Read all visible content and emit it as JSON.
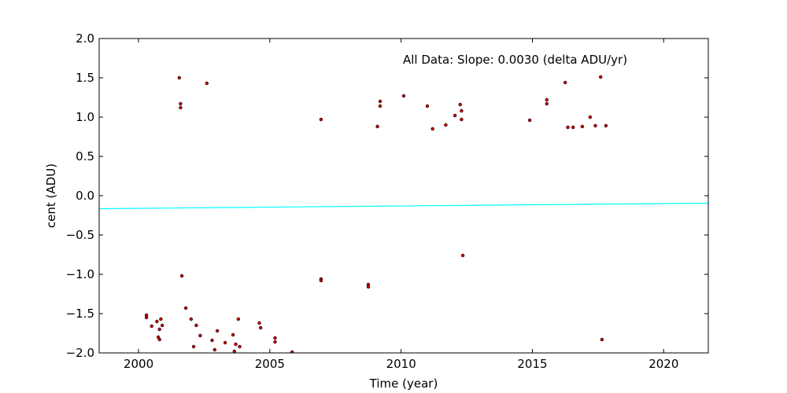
{
  "chart_data": {
    "type": "scatter",
    "title": "",
    "xlabel": "Time (year)",
    "ylabel": "cent (ADU)",
    "xlim": [
      1998.5,
      2021.7
    ],
    "ylim": [
      -2.0,
      2.0
    ],
    "x_ticks": [
      2000,
      2005,
      2010,
      2015,
      2020
    ],
    "x_tick_labels": [
      "2000",
      "2005",
      "2010",
      "2015",
      "2020"
    ],
    "y_ticks": [
      -2.0,
      -1.5,
      -1.0,
      -0.5,
      0.0,
      0.5,
      1.0,
      1.5,
      2.0
    ],
    "y_tick_labels": [
      "−2.0",
      "−1.5",
      "−1.0",
      "−0.5",
      "0.0",
      "0.5",
      "1.0",
      "1.5",
      "2.0"
    ],
    "grid": false,
    "annotation": "All Data: Slope:  0.0030 (delta ADU/yr)",
    "fit_line": {
      "color": "#00ffff",
      "points": [
        [
          1998.5,
          -0.165
        ],
        [
          2021.7,
          -0.095
        ]
      ]
    },
    "series": [
      {
        "marker_color": "#cc0000",
        "edge_color": "#000000",
        "points": [
          [
            2000.3,
            -1.55
          ],
          [
            2000.3,
            -1.52
          ],
          [
            2000.5,
            -1.66
          ],
          [
            2000.7,
            -1.6
          ],
          [
            2000.75,
            -1.8
          ],
          [
            2000.8,
            -1.83
          ],
          [
            2000.8,
            -1.7
          ],
          [
            2000.85,
            -1.57
          ],
          [
            2000.9,
            -1.65
          ],
          [
            2001.55,
            1.5
          ],
          [
            2001.6,
            1.17
          ],
          [
            2001.6,
            1.12
          ],
          [
            2001.65,
            -1.02
          ],
          [
            2001.8,
            -1.43
          ],
          [
            2002.0,
            -1.57
          ],
          [
            2002.1,
            -1.92
          ],
          [
            2002.2,
            -1.65
          ],
          [
            2002.35,
            -1.78
          ],
          [
            2002.6,
            1.43
          ],
          [
            2002.8,
            -1.84
          ],
          [
            2002.9,
            -1.96
          ],
          [
            2003.0,
            -1.72
          ],
          [
            2003.3,
            -1.87
          ],
          [
            2003.6,
            -1.77
          ],
          [
            2003.65,
            -1.98
          ],
          [
            2003.7,
            -1.89
          ],
          [
            2003.8,
            -1.57
          ],
          [
            2003.85,
            -1.92
          ],
          [
            2004.6,
            -1.62
          ],
          [
            2004.65,
            -1.68
          ],
          [
            2005.2,
            -1.86
          ],
          [
            2005.2,
            -1.81
          ],
          [
            2005.85,
            -1.99
          ],
          [
            2006.95,
            0.97
          ],
          [
            2006.95,
            -1.06
          ],
          [
            2006.95,
            -1.08
          ],
          [
            2008.75,
            -1.13
          ],
          [
            2008.75,
            -1.16
          ],
          [
            2009.2,
            1.2
          ],
          [
            2009.2,
            1.14
          ],
          [
            2009.1,
            0.88
          ],
          [
            2010.1,
            1.27
          ],
          [
            2011.0,
            1.14
          ],
          [
            2011.2,
            0.85
          ],
          [
            2011.7,
            0.9
          ],
          [
            2012.05,
            1.02
          ],
          [
            2012.25,
            1.16
          ],
          [
            2012.3,
            1.08
          ],
          [
            2012.3,
            0.97
          ],
          [
            2012.35,
            -0.76
          ],
          [
            2014.9,
            0.96
          ],
          [
            2015.55,
            1.22
          ],
          [
            2015.55,
            1.17
          ],
          [
            2016.25,
            1.44
          ],
          [
            2016.35,
            0.87
          ],
          [
            2016.55,
            0.87
          ],
          [
            2016.9,
            0.88
          ],
          [
            2017.2,
            1.0
          ],
          [
            2017.4,
            0.89
          ],
          [
            2017.6,
            1.51
          ],
          [
            2017.65,
            -1.83
          ],
          [
            2017.8,
            0.89
          ]
        ]
      }
    ]
  }
}
